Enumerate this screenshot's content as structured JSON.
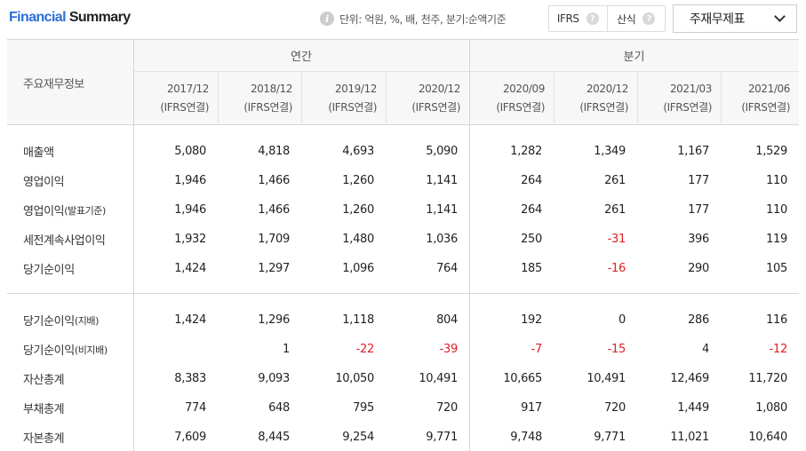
{
  "header": {
    "title_part1": "Financial",
    "title_part2": "Summary",
    "unit_text": "단위: 억원, %, 배, 천주, 분기:순액기준",
    "info_icon_glyph": "i",
    "standard_label": "IFRS",
    "method_label": "산식",
    "help_glyph": "?",
    "statement_select": "주재무제표"
  },
  "table": {
    "row_header": "주요재무정보",
    "groups": {
      "annual": "연간",
      "quarterly": "분기"
    },
    "columns": [
      {
        "period": "2017/12",
        "basis": "(IFRS연결)"
      },
      {
        "period": "2018/12",
        "basis": "(IFRS연결)"
      },
      {
        "period": "2019/12",
        "basis": "(IFRS연결)"
      },
      {
        "period": "2020/12",
        "basis": "(IFRS연결)"
      },
      {
        "period": "2020/09",
        "basis": "(IFRS연결)"
      },
      {
        "period": "2020/12",
        "basis": "(IFRS연결)"
      },
      {
        "period": "2021/03",
        "basis": "(IFRS연결)"
      },
      {
        "period": "2021/06",
        "basis": "(IFRS연결)"
      }
    ],
    "rows": [
      {
        "label": "매출액",
        "values": [
          "5,080",
          "4,818",
          "4,693",
          "5,090",
          "1,282",
          "1,349",
          "1,167",
          "1,529"
        ]
      },
      {
        "label": "영업이익",
        "values": [
          "1,946",
          "1,466",
          "1,260",
          "1,141",
          "264",
          "261",
          "177",
          "110"
        ]
      },
      {
        "label": "영업이익",
        "label_suffix": "(발표기준)",
        "values": [
          "1,946",
          "1,466",
          "1,260",
          "1,141",
          "264",
          "261",
          "177",
          "110"
        ]
      },
      {
        "label": "세전계속사업이익",
        "values": [
          "1,932",
          "1,709",
          "1,480",
          "1,036",
          "250",
          "-31",
          "396",
          "119"
        ]
      },
      {
        "label": "당기순이익",
        "values": [
          "1,424",
          "1,297",
          "1,096",
          "764",
          "185",
          "-16",
          "290",
          "105"
        ]
      },
      {
        "label": "당기순이익",
        "label_suffix": "(지배)",
        "values": [
          "1,424",
          "1,296",
          "1,118",
          "804",
          "192",
          "0",
          "286",
          "116"
        ]
      },
      {
        "label": "당기순이익",
        "label_suffix": "(비지배)",
        "values": [
          "",
          "1",
          "-22",
          "-39",
          "-7",
          "-15",
          "4",
          "-12"
        ]
      },
      {
        "label": "자산총계",
        "values": [
          "8,383",
          "9,093",
          "10,050",
          "10,491",
          "10,665",
          "10,491",
          "12,469",
          "11,720"
        ]
      },
      {
        "label": "부채총계",
        "values": [
          "774",
          "648",
          "795",
          "720",
          "917",
          "720",
          "1,449",
          "1,080"
        ]
      },
      {
        "label": "자본총계",
        "values": [
          "7,609",
          "8,445",
          "9,254",
          "9,771",
          "9,748",
          "9,771",
          "11,021",
          "10,640"
        ]
      }
    ],
    "negative_color": "#e02020"
  }
}
